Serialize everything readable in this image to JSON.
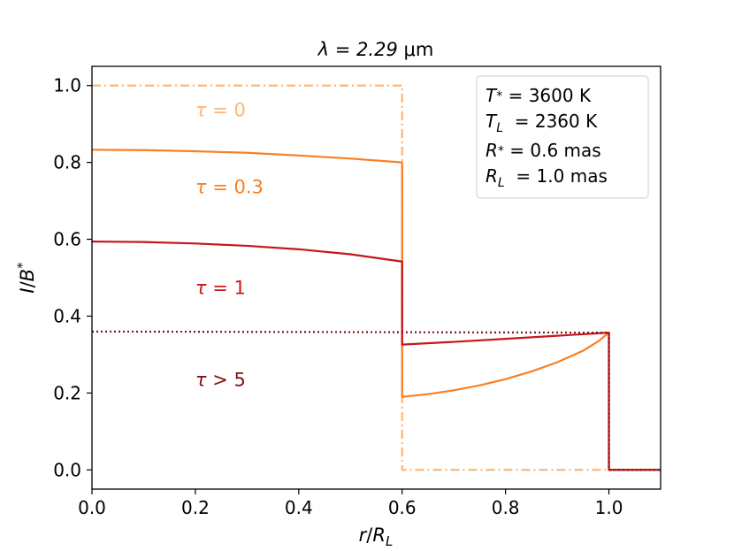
{
  "chart_data": {
    "type": "line",
    "title_prefix": "λ = 2.29 ",
    "title_unit": "μm",
    "xlabel": {
      "base": "r",
      "sep": "/",
      "base2": "R",
      "sub": "L"
    },
    "ylabel": {
      "base": "I",
      "sep": "/",
      "base2": "B",
      "sub": "*"
    },
    "xlim": [
      0.0,
      1.1
    ],
    "ylim": [
      -0.05,
      1.05
    ],
    "xticks": [
      0.0,
      0.2,
      0.4,
      0.6,
      0.8,
      1.0
    ],
    "xtick_labels": [
      "0.0",
      "0.2",
      "0.4",
      "0.6",
      "0.8",
      "1.0"
    ],
    "yticks": [
      0.0,
      0.2,
      0.4,
      0.6,
      0.8,
      1.0
    ],
    "ytick_labels": [
      "0.0",
      "0.2",
      "0.4",
      "0.6",
      "0.8",
      "1.0"
    ],
    "grid": false,
    "series": [
      {
        "name": "τ = 0",
        "color": "#fdb777",
        "style": "dashdot",
        "points": [
          [
            0.0,
            1.0
          ],
          [
            0.6,
            1.0
          ],
          [
            0.6,
            0.0
          ],
          [
            1.1,
            0.0
          ]
        ]
      },
      {
        "name": "τ = 0.3",
        "color": "#f97f21",
        "style": "solid",
        "points": [
          [
            0.0,
            0.833
          ],
          [
            0.1,
            0.832
          ],
          [
            0.2,
            0.829
          ],
          [
            0.3,
            0.825
          ],
          [
            0.4,
            0.818
          ],
          [
            0.5,
            0.81
          ],
          [
            0.6,
            0.8
          ],
          [
            0.6,
            0.19
          ],
          [
            0.65,
            0.197
          ],
          [
            0.7,
            0.207
          ],
          [
            0.75,
            0.22
          ],
          [
            0.8,
            0.236
          ],
          [
            0.85,
            0.256
          ],
          [
            0.9,
            0.28
          ],
          [
            0.95,
            0.31
          ],
          [
            0.98,
            0.335
          ],
          [
            1.0,
            0.357
          ],
          [
            1.0,
            0.0
          ],
          [
            1.1,
            0.0
          ]
        ]
      },
      {
        "name": "τ = 1",
        "color": "#c5161d",
        "style": "solid",
        "points": [
          [
            0.0,
            0.594
          ],
          [
            0.1,
            0.593
          ],
          [
            0.2,
            0.589
          ],
          [
            0.3,
            0.583
          ],
          [
            0.4,
            0.574
          ],
          [
            0.5,
            0.561
          ],
          [
            0.6,
            0.542
          ],
          [
            0.6,
            0.326
          ],
          [
            0.7,
            0.333
          ],
          [
            0.8,
            0.341
          ],
          [
            0.9,
            0.349
          ],
          [
            1.0,
            0.357
          ],
          [
            1.0,
            0.0
          ],
          [
            1.1,
            0.0
          ]
        ]
      },
      {
        "name": "τ > 5",
        "color": "#7f1416",
        "style": "dotted",
        "points": [
          [
            0.0,
            0.36
          ],
          [
            1.0,
            0.357
          ],
          [
            1.0,
            0.0
          ],
          [
            1.1,
            0.0
          ]
        ]
      }
    ],
    "annotations": [
      {
        "text": "τ = 0",
        "x": 0.2,
        "y": 0.92,
        "color": "#fdb777"
      },
      {
        "text": "τ = 0.3",
        "x": 0.2,
        "y": 0.72,
        "color": "#f97f21"
      },
      {
        "text": "τ = 1",
        "x": 0.2,
        "y": 0.458,
        "color": "#c5161d"
      },
      {
        "text": "τ > 5",
        "x": 0.2,
        "y": 0.218,
        "color": "#7f1416"
      }
    ],
    "legend_box": {
      "position": "top-right",
      "lines": [
        {
          "sym": "T",
          "sub": "*",
          "value": " = 3600 K"
        },
        {
          "sym": "T",
          "sub": "L",
          "value": "  = 2360 K"
        },
        {
          "sym": "R",
          "sub": "*",
          "value": " = 0.6 mas"
        },
        {
          "sym": "R",
          "sub": "L",
          "value": "  = 1.0 mas"
        }
      ]
    }
  }
}
